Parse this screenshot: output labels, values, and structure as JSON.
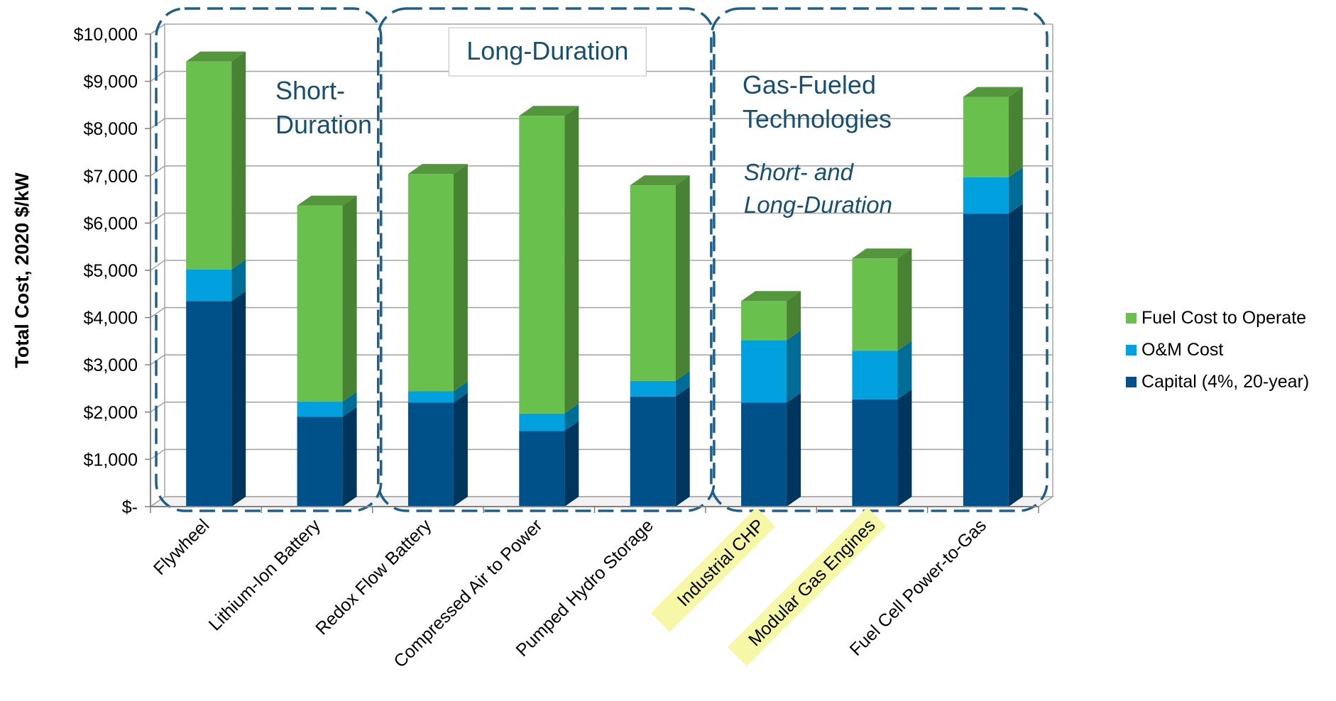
{
  "chart_data": {
    "type": "bar",
    "stacked": true,
    "three_d": true,
    "xlabel": "",
    "ylabel": "Total Cost, 2020 $/kW",
    "ylim": [
      0,
      10000
    ],
    "yticks": [
      0,
      1000,
      2000,
      3000,
      4000,
      5000,
      6000,
      7000,
      8000,
      9000,
      10000
    ],
    "ytick_labels": [
      "$-",
      "$1,000",
      "$2,000",
      "$3,000",
      "$4,000",
      "$5,000",
      "$6,000",
      "$7,000",
      "$8,000",
      "$9,000",
      "$10,000"
    ],
    "grid": true,
    "legend_position": "right",
    "categories": [
      "Flywheel",
      "Lithium-Ion Battery",
      "Redox Flow Battery",
      "Compressed Air to Power",
      "Pumped Hydro Storage",
      "Industrial CHP",
      "Modular Gas Engines",
      "Fuel Cell Power-to-Gas"
    ],
    "highlighted_categories": [
      "Industrial CHP",
      "Modular Gas Engines"
    ],
    "series": [
      {
        "name": "Capital (4%, 20-year)",
        "color": "#00508a",
        "values": [
          4350,
          1900,
          2200,
          1600,
          2330,
          2200,
          2270,
          6200
        ]
      },
      {
        "name": "O&M Cost",
        "color": "#00a1de",
        "values": [
          670,
          320,
          240,
          370,
          330,
          1320,
          1030,
          770
        ]
      },
      {
        "name": "Fuel Cost to Operate",
        "color": "#6ac04d",
        "values": [
          4400,
          4150,
          4600,
          6300,
          4140,
          830,
          1950,
          1700
        ]
      }
    ],
    "legend_order": [
      "Fuel Cost to Operate",
      "O&M Cost",
      "Capital (4%, 20-year)"
    ],
    "groups": [
      {
        "title_lines": [
          "Short-",
          "Duration"
        ],
        "subtitle_lines": [],
        "categories": [
          "Flywheel",
          "Lithium-Ion Battery"
        ]
      },
      {
        "title_lines": [
          "Long-Duration"
        ],
        "subtitle_lines": [],
        "categories": [
          "Redox Flow Battery",
          "Compressed Air to Power",
          "Pumped Hydro Storage"
        ]
      },
      {
        "title_lines": [
          "Gas-Fueled",
          "Technologies"
        ],
        "subtitle_lines": [
          "Short- and",
          "Long-Duration"
        ],
        "categories": [
          "Industrial CHP",
          "Modular Gas Engines",
          "Fuel Cell Power-to-Gas"
        ]
      }
    ],
    "colors": {
      "group_border": "#1f5f8b",
      "group_text": "#17506e",
      "highlight": "#f7f7a8",
      "grid": "#a6a6a6"
    }
  }
}
